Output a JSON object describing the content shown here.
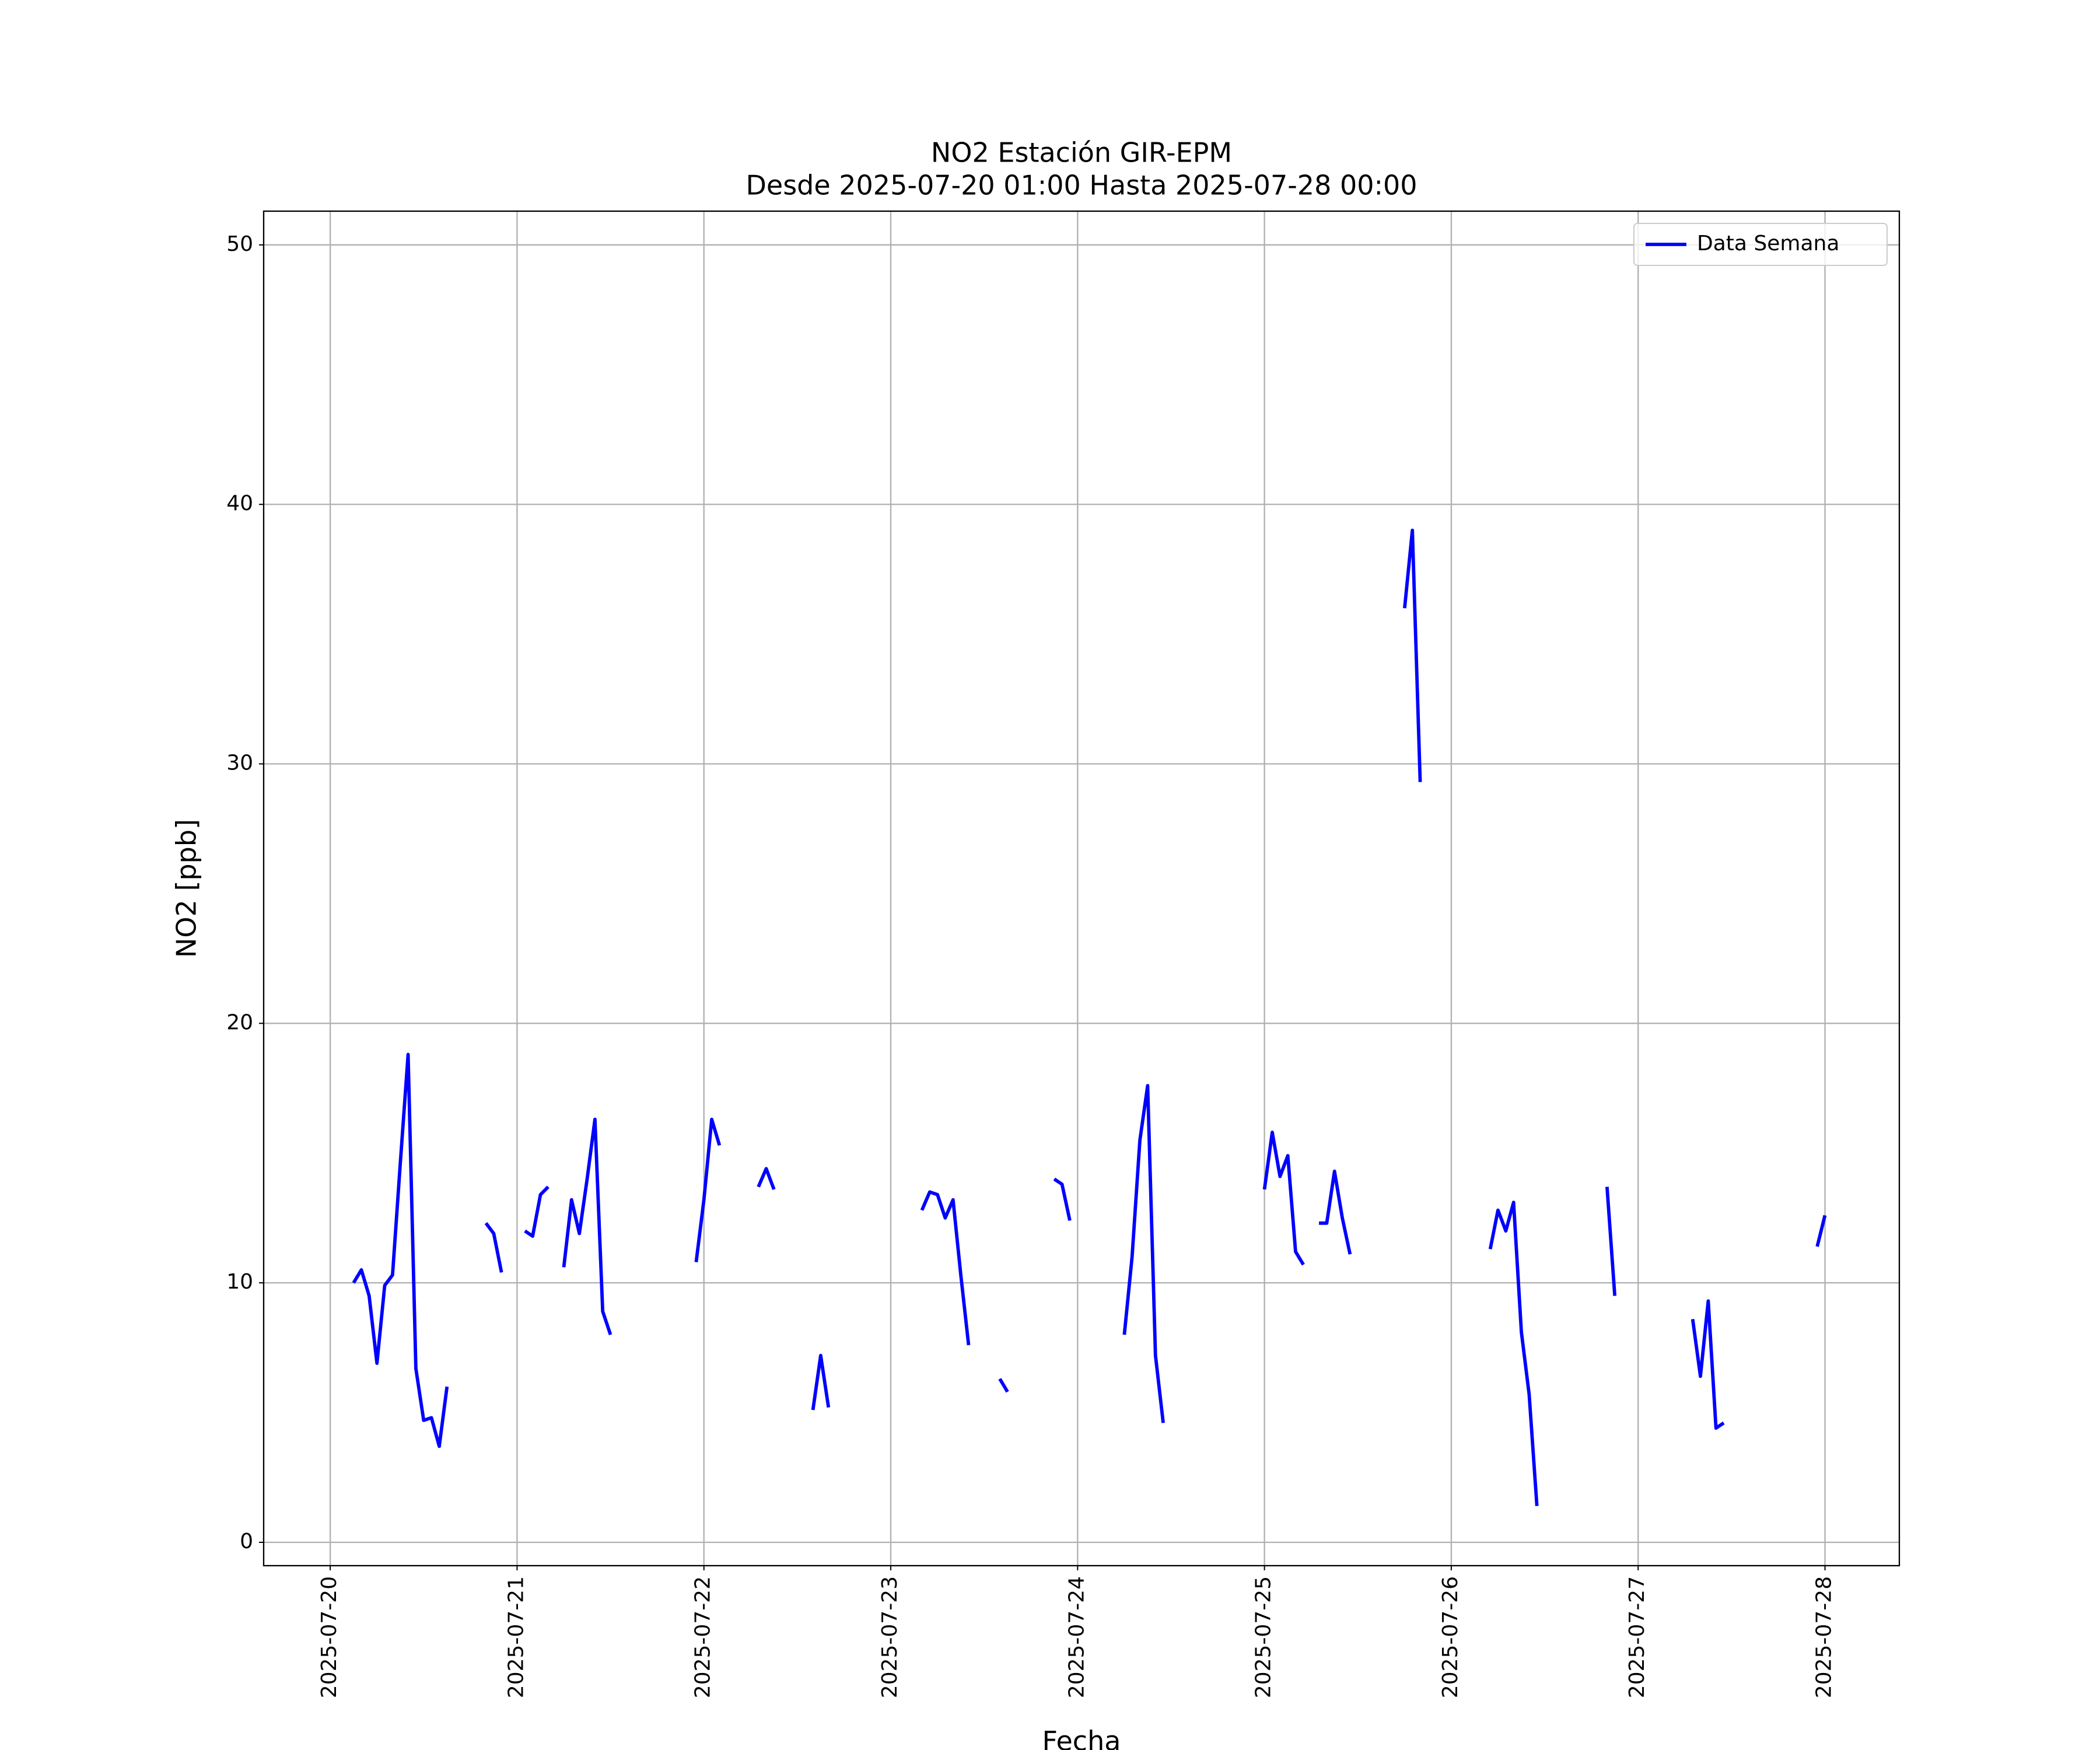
{
  "chart_data": {
    "type": "line",
    "title": "NO2 Estación GIR-EPM",
    "subtitle": "Desde 2025-07-20 01:00 Hasta 2025-07-28 00:00",
    "xlabel": "Fecha",
    "ylabel": "NO2 [ppb]",
    "x": [
      "2025-07-20 03:00",
      "2025-07-20 04:00",
      "2025-07-20 05:00",
      "2025-07-20 06:00",
      "2025-07-20 07:00",
      "2025-07-20 08:00",
      "2025-07-20 09:00",
      "2025-07-20 10:00",
      "2025-07-20 11:00",
      "2025-07-20 12:00",
      "2025-07-20 13:00",
      "2025-07-20 14:00",
      "2025-07-20 15:00",
      "2025-07-20 17:00",
      "2025-07-20 20:00",
      "2025-07-20 21:00",
      "2025-07-20 22:00",
      "2025-07-20 23:00",
      "2025-07-21 01:00",
      "2025-07-21 02:00",
      "2025-07-21 03:00",
      "2025-07-21 04:00",
      "2025-07-21 05:00",
      "2025-07-21 06:00",
      "2025-07-21 07:00",
      "2025-07-21 08:00",
      "2025-07-21 09:00",
      "2025-07-21 10:00",
      "2025-07-21 11:00",
      "2025-07-21 12:00",
      "2025-07-21 17:00",
      "2025-07-21 23:00",
      "2025-07-22 00:00",
      "2025-07-22 01:00",
      "2025-07-22 02:00",
      "2025-07-22 04:00",
      "2025-07-22 07:00",
      "2025-07-22 08:00",
      "2025-07-22 09:00",
      "2025-07-22 11:00",
      "2025-07-22 14:00",
      "2025-07-22 15:00",
      "2025-07-22 16:00",
      "2025-07-22 22:00",
      "2025-07-23 04:00",
      "2025-07-23 05:00",
      "2025-07-23 06:00",
      "2025-07-23 07:00",
      "2025-07-23 08:00",
      "2025-07-23 09:00",
      "2025-07-23 10:00",
      "2025-07-23 12:00",
      "2025-07-23 14:00",
      "2025-07-23 15:00",
      "2025-07-23 18:00",
      "2025-07-23 21:00",
      "2025-07-23 22:00",
      "2025-07-23 23:00",
      "2025-07-24 02:00",
      "2025-07-24 06:00",
      "2025-07-24 07:00",
      "2025-07-24 08:00",
      "2025-07-24 09:00",
      "2025-07-24 10:00",
      "2025-07-24 11:00",
      "2025-07-24 18:00",
      "2025-07-25 00:00",
      "2025-07-25 01:00",
      "2025-07-25 02:00",
      "2025-07-25 03:00",
      "2025-07-25 04:00",
      "2025-07-25 05:00",
      "2025-07-25 06:00",
      "2025-07-25 07:00",
      "2025-07-25 08:00",
      "2025-07-25 09:00",
      "2025-07-25 10:00",
      "2025-07-25 11:00",
      "2025-07-25 14:00",
      "2025-07-25 18:00",
      "2025-07-25 19:00",
      "2025-07-25 20:00",
      "2025-07-26 02:00",
      "2025-07-26 05:00",
      "2025-07-26 06:00",
      "2025-07-26 07:00",
      "2025-07-26 08:00",
      "2025-07-26 09:00",
      "2025-07-26 10:00",
      "2025-07-26 11:00",
      "2025-07-26 16:00",
      "2025-07-26 20:00",
      "2025-07-26 21:00",
      "2025-07-27 02:00",
      "2025-07-27 07:00",
      "2025-07-27 08:00",
      "2025-07-27 09:00",
      "2025-07-27 10:00",
      "2025-07-27 11:00",
      "2025-07-27 18:00",
      "2025-07-27 23:00",
      "2025-07-28 00:00"
    ],
    "series": [
      {
        "name": "Data Semana",
        "color": "#0000ff",
        "values": [
          10.0,
          10.5,
          9.5,
          6.9,
          9.9,
          10.3,
          14.6,
          18.8,
          6.7,
          4.7,
          4.8,
          3.7,
          6.0,
          null,
          12.3,
          11.9,
          10.4,
          null,
          12.0,
          11.8,
          13.4,
          13.7,
          null,
          10.6,
          13.2,
          11.9,
          14.0,
          16.3,
          8.9,
          8.0,
          null,
          10.8,
          13.2,
          16.3,
          15.3,
          null,
          13.7,
          14.4,
          13.6,
          null,
          5.1,
          7.2,
          5.2,
          null,
          12.8,
          13.5,
          13.4,
          12.5,
          13.2,
          10.3,
          7.6,
          null,
          6.3,
          5.8,
          null,
          14.0,
          13.8,
          12.4,
          null,
          8.0,
          11.0,
          15.5,
          17.6,
          7.2,
          4.6,
          null,
          13.6,
          15.8,
          14.1,
          14.9,
          11.2,
          10.7,
          null,
          12.3,
          12.3,
          14.3,
          12.5,
          11.1,
          null,
          36.0,
          39.0,
          29.3,
          null,
          11.3,
          12.8,
          12.0,
          13.1,
          8.1,
          5.7,
          1.4,
          null,
          13.7,
          9.5,
          null,
          8.6,
          6.4,
          9.3,
          4.4,
          4.6,
          null,
          11.4,
          12.6
        ]
      }
    ],
    "xlim": [
      "2025-07-19 15:27",
      "2025-07-28 09:33"
    ],
    "xticks": [
      "2025-07-20",
      "2025-07-21",
      "2025-07-22",
      "2025-07-23",
      "2025-07-24",
      "2025-07-25",
      "2025-07-26",
      "2025-07-27",
      "2025-07-28"
    ],
    "ylim": [
      -0.9,
      51.3
    ],
    "yticks": [
      0,
      10,
      20,
      30,
      40,
      50
    ],
    "grid": true,
    "legend": "upper right"
  }
}
